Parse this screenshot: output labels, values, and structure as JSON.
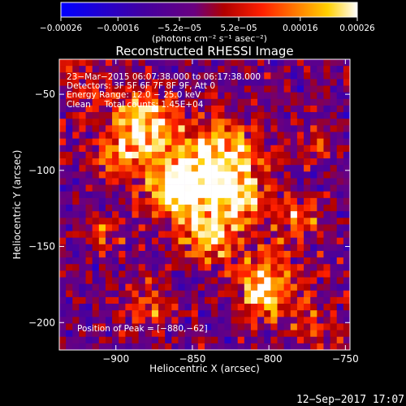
{
  "chart_data": {
    "type": "heatmap",
    "title": "Reconstructed RHESSI Image",
    "xlabel": "Heliocentric X (arcsec)",
    "ylabel": "Heliocentric Y (arcsec)",
    "xlim": [
      -937,
      -747
    ],
    "ylim": [
      -218,
      -27
    ],
    "x_ticks": [
      -900,
      -850,
      -800,
      -750
    ],
    "y_ticks": [
      -50,
      -100,
      -150,
      -200
    ],
    "x_tick_labels": [
      "−900",
      "−850",
      "−800",
      "−750"
    ],
    "y_tick_labels": [
      "−50",
      "−100",
      "−150",
      "−200"
    ],
    "colorbar": {
      "range": [
        -0.00026,
        0.00026
      ],
      "tick_values": [
        -0.00026,
        -0.00016,
        -5.2e-05,
        5.2e-05,
        0.00016,
        0.00026
      ],
      "tick_labels": [
        "−0.00026",
        "−0.00016",
        "−5.2e−05",
        "5.2e−05",
        "0.00016",
        "0.00026"
      ],
      "unit": "(photons cm⁻² s⁻¹ asec⁻²)",
      "colormap": [
        "#0000ff",
        "#4400a0",
        "#6a0080",
        "#b00000",
        "#ff2000",
        "#ff8000",
        "#ffd000",
        "#ffffff"
      ]
    },
    "annotations": [
      "23−Mar−2015 06:07:38.000 to 06:17:38.000",
      "Detectors: 3F 5F 6F 7F 8F 9F, Att 0",
      "Energy Range: 12.0 − 25.0 keV",
      "Clean     Total counts: 1.45E+04"
    ],
    "peak_label": "Position of Peak = [−880,−62]",
    "peak": [
      -880,
      -62
    ]
  },
  "timestamp": "12−Sep−2017 17:07"
}
